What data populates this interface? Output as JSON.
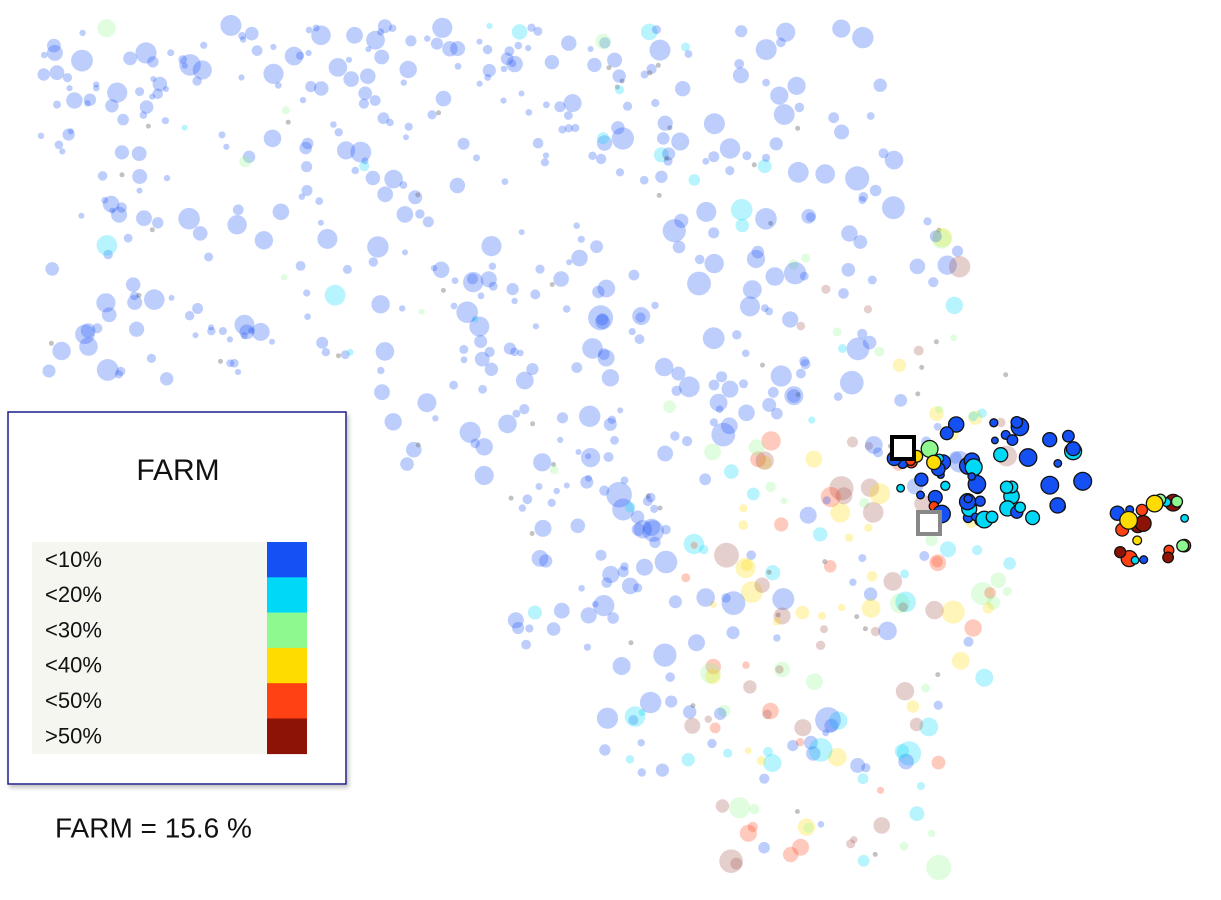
{
  "legend": {
    "title": "FARM",
    "items": [
      {
        "label": "<10%",
        "color": "#1550f5"
      },
      {
        "label": "<20%",
        "color": "#00d8f8"
      },
      {
        "label": "<30%",
        "color": "#8ef98e"
      },
      {
        "label": "<40%",
        "color": "#ffdc00"
      },
      {
        "label": "<50%",
        "color": "#ff4114"
      },
      {
        "label": ">50%",
        "color": "#8e1307"
      }
    ]
  },
  "caption": "FARM = 15.6 %"
}
